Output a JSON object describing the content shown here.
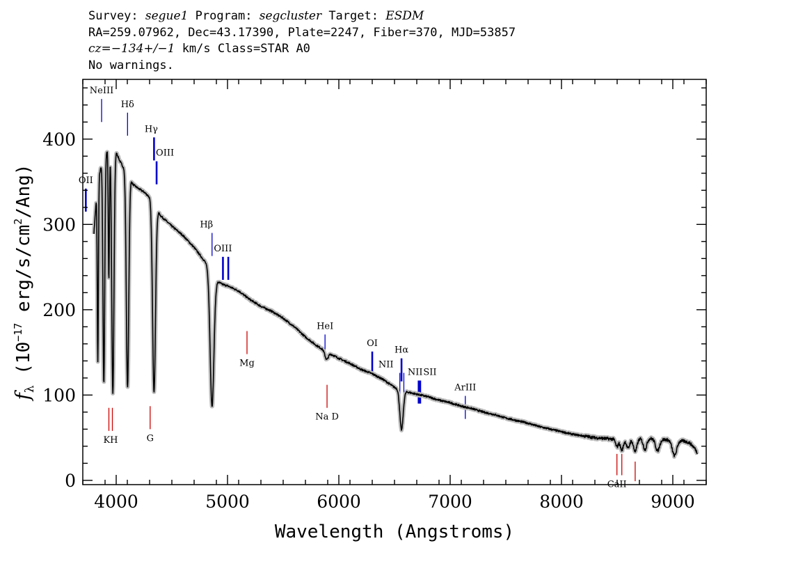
{
  "header": {
    "line1": {
      "survey_label": "Survey: ",
      "survey": "segue1",
      "program_label": " Program: ",
      "program": "segcluster",
      "target_label": " Target: ",
      "target": "ESDM"
    },
    "line2": "RA=259.07962, Dec=43.17390, Plate=2247, Fiber=370, MJD=53857",
    "line3": {
      "cz": "cz=−134+/−1",
      "rest": " km/s Class=STAR A0"
    },
    "line4": "No warnings."
  },
  "chart_data": {
    "type": "line",
    "xlabel": "Wavelength (Angstroms)",
    "ylabel": "fλ (10⁻¹⁷ erg/s/cm²/Ang)",
    "xlim": [
      3700,
      9300
    ],
    "ylim": [
      -5,
      470
    ],
    "x_ticks": [
      4000,
      5000,
      6000,
      7000,
      8000,
      9000
    ],
    "y_ticks": [
      0,
      100,
      200,
      300,
      400
    ],
    "colors": {
      "flux": "#000000",
      "error_band": "#bbbbbb",
      "emission": "#0000cc",
      "absorption": "#cc0000"
    },
    "continuum": [
      [
        3800,
        290
      ],
      [
        3830,
        345
      ],
      [
        3870,
        372
      ],
      [
        3900,
        382
      ],
      [
        3950,
        395
      ],
      [
        4000,
        385
      ],
      [
        4030,
        375
      ],
      [
        4060,
        368
      ],
      [
        4100,
        362
      ],
      [
        4150,
        347
      ],
      [
        4200,
        342
      ],
      [
        4250,
        338
      ],
      [
        4300,
        332
      ],
      [
        4345,
        322
      ],
      [
        4400,
        310
      ],
      [
        4500,
        298
      ],
      [
        4600,
        287
      ],
      [
        4700,
        273
      ],
      [
        4800,
        256
      ],
      [
        4900,
        234
      ],
      [
        4950,
        230
      ],
      [
        5000,
        228
      ],
      [
        5100,
        222
      ],
      [
        5200,
        212
      ],
      [
        5300,
        204
      ],
      [
        5400,
        198
      ],
      [
        5500,
        190
      ],
      [
        5600,
        180
      ],
      [
        5700,
        168
      ],
      [
        5800,
        158
      ],
      [
        5900,
        150
      ],
      [
        6000,
        143
      ],
      [
        6100,
        137
      ],
      [
        6200,
        130
      ],
      [
        6300,
        125
      ],
      [
        6400,
        118
      ],
      [
        6500,
        109
      ],
      [
        6600,
        104
      ],
      [
        6700,
        101
      ],
      [
        6800,
        98
      ],
      [
        6900,
        94
      ],
      [
        7000,
        91
      ],
      [
        7100,
        87
      ],
      [
        7200,
        84
      ],
      [
        7300,
        80
      ],
      [
        7400,
        77
      ],
      [
        7500,
        73
      ],
      [
        7600,
        70
      ],
      [
        7700,
        67
      ],
      [
        7800,
        63
      ],
      [
        7900,
        60
      ],
      [
        8000,
        57
      ],
      [
        8100,
        54
      ],
      [
        8200,
        52
      ],
      [
        8300,
        50
      ],
      [
        8400,
        49
      ],
      [
        8500,
        48
      ],
      [
        8600,
        48
      ],
      [
        8700,
        49
      ],
      [
        8800,
        49
      ],
      [
        8900,
        48
      ],
      [
        9000,
        47
      ],
      [
        9100,
        46
      ],
      [
        9150,
        44
      ],
      [
        9220,
        35
      ]
    ],
    "absorption_features": [
      {
        "center": 3835,
        "depth": 0.6,
        "width": 5
      },
      {
        "center": 3889,
        "depth": 0.7,
        "width": 8
      },
      {
        "center": 3934,
        "depth": 0.4,
        "width": 5
      },
      {
        "center": 3970,
        "depth": 0.74,
        "width": 10
      },
      {
        "center": 4102,
        "depth": 0.7,
        "width": 11
      },
      {
        "center": 4340,
        "depth": 0.68,
        "width": 13
      },
      {
        "center": 4861,
        "depth": 0.64,
        "width": 17
      },
      {
        "center": 5890,
        "depth": 0.06,
        "width": 15
      },
      {
        "center": 6563,
        "depth": 0.44,
        "width": 15
      },
      {
        "center": 8498,
        "depth": 0.18,
        "width": 12
      },
      {
        "center": 8542,
        "depth": 0.26,
        "width": 14
      },
      {
        "center": 8598,
        "depth": 0.22,
        "width": 14
      },
      {
        "center": 8662,
        "depth": 0.3,
        "width": 16
      },
      {
        "center": 8750,
        "depth": 0.26,
        "width": 16
      },
      {
        "center": 8863,
        "depth": 0.28,
        "width": 18
      },
      {
        "center": 9015,
        "depth": 0.38,
        "width": 20
      },
      {
        "center": 9229,
        "depth": 0.1,
        "width": 15
      }
    ],
    "emission_lines": [
      {
        "name": "OII",
        "wavelength": 3727,
        "y_top": 342,
        "y_bottom": 315,
        "thick": true,
        "label_offset": 0
      },
      {
        "name": "NeIII",
        "wavelength": 3869,
        "y_top": 447,
        "y_bottom": 420,
        "thick": false,
        "label_offset": 0
      },
      {
        "name": "Hδ",
        "wavelength": 4102,
        "y_top": 431,
        "y_bottom": 404,
        "thick": false,
        "label_offset": 0
      },
      {
        "name": "Hγ",
        "wavelength": 4340,
        "y_top": 402,
        "y_bottom": 375,
        "thick": true,
        "label_offset": -4
      },
      {
        "name": "OIII",
        "wavelength": 4363,
        "y_top": 374,
        "y_bottom": 347,
        "thick": true,
        "label_offset": 12
      },
      {
        "name": "Hβ",
        "wavelength": 4861,
        "y_top": 290,
        "y_bottom": 263,
        "thick": false,
        "label_offset": -8
      },
      {
        "name": "OIII",
        "wavelength": 4959,
        "y_top": 262,
        "y_bottom": 235,
        "thick": true,
        "label_offset": 0
      },
      {
        "name": "",
        "wavelength": 5007,
        "y_top": 262,
        "y_bottom": 235,
        "thick": true,
        "label_offset": 0
      },
      {
        "name": "HeI",
        "wavelength": 5876,
        "y_top": 171,
        "y_bottom": 144,
        "thick": false,
        "label_offset": 0
      },
      {
        "name": "OI",
        "wavelength": 6300,
        "y_top": 151,
        "y_bottom": 124,
        "thick": true,
        "label_offset": 0
      },
      {
        "name": "NII",
        "wavelength": 6548,
        "y_top": 126,
        "y_bottom": 99,
        "thick": false,
        "label_offset": -20
      },
      {
        "name": "Hα",
        "wavelength": 6563,
        "y_top": 143,
        "y_bottom": 116,
        "thick": true,
        "label_offset": 0
      },
      {
        "name": "",
        "wavelength": 6584,
        "y_top": 126,
        "y_bottom": 99,
        "thick": false,
        "label_offset": 0
      },
      {
        "name": "NII",
        "wavelength": 6717,
        "y_top": 117,
        "y_bottom": 90,
        "thick": true,
        "label_offset": -5
      },
      {
        "name": "SII",
        "wavelength": 6731,
        "y_top": 117,
        "y_bottom": 90,
        "thick": true,
        "label_offset": 14
      },
      {
        "name": "ArIII",
        "wavelength": 7136,
        "y_top": 99,
        "y_bottom": 72,
        "thick": false,
        "label_offset": 0
      }
    ],
    "absorption_lines": [
      {
        "name": "KH",
        "wavelength": 3950,
        "y_top": 85,
        "y_bottom": 58,
        "double": true
      },
      {
        "name": "G",
        "wavelength": 4305,
        "y_top": 87,
        "y_bottom": 60,
        "double": false
      },
      {
        "name": "Mg",
        "wavelength": 5175,
        "y_top": 175,
        "y_bottom": 148,
        "double": false
      },
      {
        "name": "Na D",
        "wavelength": 5894,
        "y_top": 112,
        "y_bottom": 85,
        "double": false
      },
      {
        "name": "CaII",
        "wavelength": 8498,
        "y_top": 31,
        "y_bottom": 6,
        "double": false
      },
      {
        "name": "",
        "wavelength": 8542,
        "y_top": 31,
        "y_bottom": 6,
        "double": false
      },
      {
        "name": "",
        "wavelength": 8662,
        "y_top": 22,
        "y_bottom": -1,
        "double": false
      }
    ]
  }
}
